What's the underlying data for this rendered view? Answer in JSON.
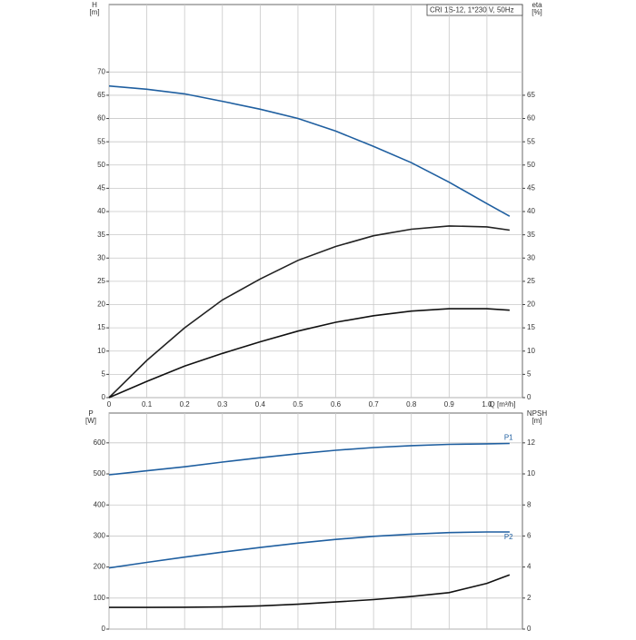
{
  "chart_data": [
    {
      "type": "line",
      "title": "CRI 1S-12, 1*230 V, 50Hz",
      "ylabel": [
        "H",
        "[m]"
      ],
      "y2label": [
        "eta",
        "[%]"
      ],
      "xlabel": "Q [m³/h]",
      "x": [
        0,
        0.1,
        0.2,
        0.3,
        0.4,
        0.5,
        0.6,
        0.7,
        0.8,
        0.9,
        1.0,
        1.06
      ],
      "xlim": [
        0,
        1.094
      ],
      "xticks": [
        0,
        0.1,
        0.2,
        0.3,
        0.4,
        0.5,
        0.6,
        0.7,
        0.8,
        0.9,
        {
          "value": 1.0,
          "label": "1.0"
        }
      ],
      "ylim": [
        0,
        84.5
      ],
      "yticks": [
        0,
        5,
        10,
        15,
        20,
        25,
        30,
        35,
        40,
        45,
        50,
        55,
        60,
        65,
        70
      ],
      "y2lim": [
        0,
        84.5
      ],
      "y2ticks": [
        0,
        5,
        10,
        15,
        20,
        25,
        30,
        35,
        40,
        45,
        50,
        55,
        60,
        65
      ],
      "grid": true,
      "series": [
        {
          "color": "#1f5fa0",
          "values": [
            67,
            66.3,
            65.3,
            63.7,
            62,
            60,
            57.3,
            54,
            50.5,
            46.3,
            41.7,
            39
          ]
        },
        {
          "color": "#222222",
          "axis": "y2",
          "values": [
            0,
            8,
            15,
            21,
            25.5,
            29.5,
            32.5,
            34.8,
            36.2,
            36.9,
            36.7,
            36
          ]
        },
        {
          "color": "#111111",
          "axis": "y2",
          "values": [
            0,
            3.5,
            6.8,
            9.5,
            12,
            14.3,
            16.2,
            17.6,
            18.6,
            19.1,
            19.1,
            18.8
          ]
        }
      ]
    },
    {
      "type": "line",
      "ylabel": [
        "P",
        "[W]"
      ],
      "y2label": [
        "NPSH",
        "[m]"
      ],
      "x": [
        0,
        0.1,
        0.2,
        0.3,
        0.4,
        0.5,
        0.6,
        0.7,
        0.8,
        0.9,
        1.0,
        1.06
      ],
      "xlim": [
        0,
        1.094
      ],
      "ylim": [
        0,
        696
      ],
      "yticks": [
        0,
        100,
        200,
        300,
        400,
        500,
        600
      ],
      "y2lim": [
        0,
        13.92
      ],
      "y2ticks": [
        0,
        2,
        4,
        6,
        8,
        10,
        12
      ],
      "grid": true,
      "series": [
        {
          "name": "P1",
          "color": "#1f5fa0",
          "values": [
            497,
            510,
            523,
            538,
            552,
            565,
            576,
            585,
            591,
            595,
            597,
            598
          ]
        },
        {
          "name": "P2",
          "color": "#1f5fa0",
          "values": [
            197,
            215,
            232,
            248,
            263,
            277,
            289,
            299,
            306,
            311,
            313,
            313
          ]
        },
        {
          "color": "#111111",
          "axis": "y2",
          "values": [
            1.4,
            1.4,
            1.41,
            1.43,
            1.5,
            1.6,
            1.75,
            1.9,
            2.1,
            2.35,
            2.95,
            3.5
          ]
        }
      ]
    }
  ]
}
